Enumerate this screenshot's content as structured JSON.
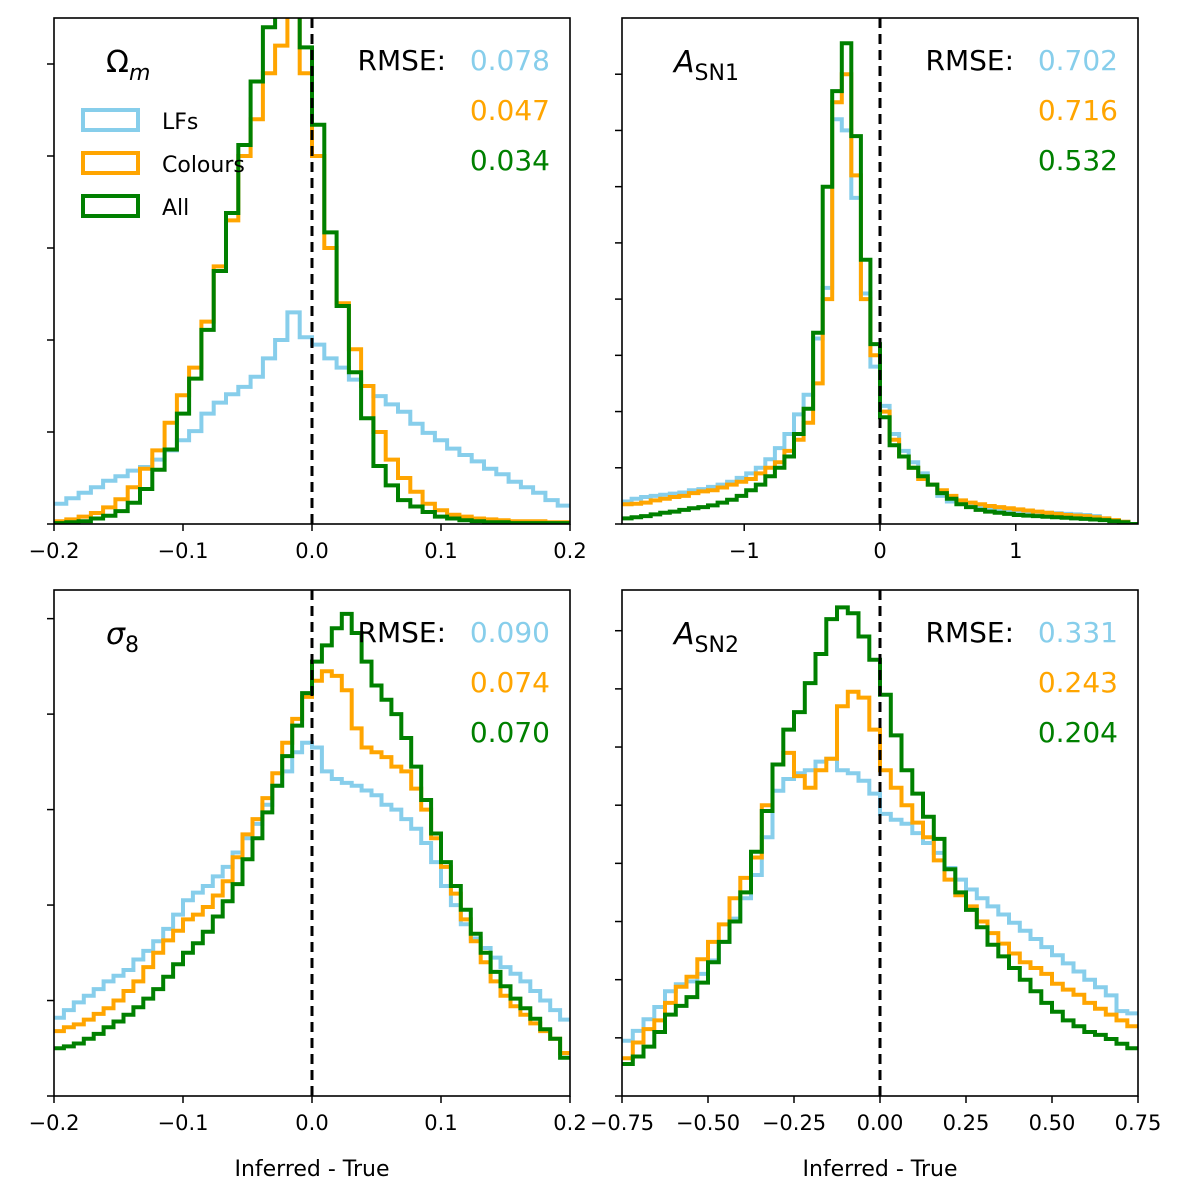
{
  "colors": {
    "LFs": "#87CEEB",
    "Colours": "#FFA500",
    "All": "#008000"
  },
  "legend": {
    "items": [
      {
        "key": "LFs",
        "label": "LFs"
      },
      {
        "key": "Colours",
        "label": "Colours"
      },
      {
        "key": "All",
        "label": "All"
      }
    ]
  },
  "rmse_prefix": "RMSE:",
  "chart_data": [
    {
      "type": "step-histogram",
      "title_main": "Ω",
      "title_sub": "m",
      "title_style": "greek",
      "xlim": [
        -0.2,
        0.2
      ],
      "xticks": [
        -0.2,
        -0.1,
        0.0,
        0.1,
        0.2
      ],
      "xtick_labels": [
        "−0.2",
        "−0.1",
        "0.0",
        "0.1",
        "0.2"
      ],
      "xlabel": "",
      "ylim": [
        0,
        5.5
      ],
      "yticks": [
        0,
        1,
        2,
        3,
        4,
        5
      ],
      "rmse": [
        {
          "key": "LFs",
          "text": "0.078"
        },
        {
          "key": "Colours",
          "text": "0.047"
        },
        {
          "key": "All",
          "text": "0.034"
        }
      ],
      "show_legend": true,
      "series": [
        {
          "key": "LFs",
          "values": [
            0.22,
            0.28,
            0.34,
            0.4,
            0.47,
            0.52,
            0.58,
            0.62,
            0.7,
            0.8,
            0.91,
            1.01,
            1.2,
            1.32,
            1.41,
            1.49,
            1.6,
            1.8,
            2.0,
            2.3,
            2.03,
            1.95,
            1.8,
            1.7,
            1.57,
            1.5,
            1.39,
            1.3,
            1.22,
            1.09,
            0.99,
            0.91,
            0.82,
            0.75,
            0.68,
            0.6,
            0.54,
            0.46,
            0.4,
            0.34,
            0.26,
            0.2
          ]
        },
        {
          "key": "Colours",
          "values": [
            0.03,
            0.05,
            0.08,
            0.12,
            0.18,
            0.27,
            0.4,
            0.6,
            0.8,
            1.1,
            1.4,
            1.7,
            2.2,
            2.8,
            3.3,
            4.0,
            4.4,
            4.9,
            5.2,
            5.8,
            4.9,
            4.0,
            3.0,
            2.4,
            1.9,
            1.5,
            1.0,
            0.7,
            0.5,
            0.35,
            0.22,
            0.15,
            0.1,
            0.08,
            0.06,
            0.05,
            0.04,
            0.03,
            0.03,
            0.03,
            0.02,
            0.02
          ]
        },
        {
          "key": "All",
          "values": [
            0.01,
            0.02,
            0.03,
            0.06,
            0.09,
            0.14,
            0.23,
            0.38,
            0.59,
            0.81,
            1.2,
            1.58,
            2.11,
            2.75,
            3.38,
            4.12,
            4.81,
            5.4,
            5.93,
            6.0,
            5.18,
            4.34,
            3.17,
            2.37,
            1.65,
            1.15,
            0.63,
            0.42,
            0.26,
            0.19,
            0.13,
            0.08,
            0.06,
            0.04,
            0.03,
            0.02,
            0.02,
            0.01,
            0.01,
            0.01,
            0.01,
            0.01
          ]
        }
      ]
    },
    {
      "type": "step-histogram",
      "title_main": "A",
      "title_sub": "SN1",
      "title_style": "italic",
      "xlim": [
        -1.9,
        1.9
      ],
      "xticks": [
        -1,
        0,
        1
      ],
      "xtick_labels": [
        "−1",
        "0",
        "1"
      ],
      "xlabel": "",
      "ylim": [
        0,
        9
      ],
      "yticks": [
        0,
        1,
        2,
        3,
        4,
        5,
        6,
        7,
        8
      ],
      "rmse": [
        {
          "key": "LFs",
          "text": "0.702"
        },
        {
          "key": "Colours",
          "text": "0.716"
        },
        {
          "key": "All",
          "text": "0.532"
        }
      ],
      "show_legend": false,
      "series": [
        {
          "key": "LFs",
          "values": [
            0.4,
            0.45,
            0.48,
            0.5,
            0.52,
            0.54,
            0.56,
            0.6,
            0.62,
            0.66,
            0.7,
            0.75,
            0.82,
            0.9,
            1.0,
            1.15,
            1.35,
            1.6,
            1.95,
            2.3,
            3.3,
            4.2,
            7.2,
            7.0,
            5.8,
            4.1,
            2.8,
            2.1,
            1.6,
            1.3,
            1.1,
            0.9,
            0.7,
            0.5,
            0.4,
            0.36,
            0.32,
            0.29,
            0.27,
            0.25,
            0.24,
            0.23,
            0.22,
            0.21,
            0.2,
            0.19,
            0.18,
            0.17,
            0.16,
            0.14,
            0.1,
            0.07,
            0.04,
            0.0
          ]
        },
        {
          "key": "Colours",
          "values": [
            0.35,
            0.36,
            0.38,
            0.42,
            0.45,
            0.48,
            0.5,
            0.55,
            0.58,
            0.6,
            0.65,
            0.7,
            0.75,
            0.8,
            0.9,
            1.0,
            1.1,
            1.3,
            1.5,
            1.8,
            2.5,
            4.0,
            7.5,
            8.0,
            6.2,
            4.0,
            3.0,
            2.0,
            1.5,
            1.2,
            1.0,
            0.8,
            0.7,
            0.6,
            0.5,
            0.42,
            0.38,
            0.35,
            0.32,
            0.3,
            0.28,
            0.26,
            0.24,
            0.22,
            0.2,
            0.18,
            0.16,
            0.15,
            0.14,
            0.12,
            0.1,
            0.07,
            0.04,
            0.0
          ]
        },
        {
          "key": "All",
          "values": [
            0.1,
            0.12,
            0.14,
            0.17,
            0.2,
            0.22,
            0.25,
            0.28,
            0.3,
            0.33,
            0.38,
            0.43,
            0.5,
            0.6,
            0.7,
            0.85,
            1.0,
            1.2,
            1.6,
            2.05,
            3.4,
            6.0,
            7.7,
            8.55,
            6.9,
            4.7,
            3.2,
            1.9,
            1.4,
            1.2,
            1.0,
            0.85,
            0.7,
            0.55,
            0.45,
            0.35,
            0.3,
            0.25,
            0.22,
            0.2,
            0.18,
            0.16,
            0.15,
            0.14,
            0.13,
            0.12,
            0.11,
            0.1,
            0.09,
            0.08,
            0.07,
            0.05,
            0.03,
            0.0
          ]
        }
      ]
    },
    {
      "type": "step-histogram",
      "title_main": "σ",
      "title_sub": "8",
      "title_style": "italic",
      "xlim": [
        -0.2,
        0.2
      ],
      "xticks": [
        -0.2,
        -0.1,
        0.0,
        0.1,
        0.2
      ],
      "xtick_labels": [
        "−0.2",
        "−0.1",
        "0.0",
        "0.1",
        "0.2"
      ],
      "xlabel": "Inferred - True",
      "ylim": [
        0,
        5.3
      ],
      "yticks": [
        0,
        1,
        2,
        3,
        4,
        5
      ],
      "rmse": [
        {
          "key": "LFs",
          "text": "0.090"
        },
        {
          "key": "Colours",
          "text": "0.074"
        },
        {
          "key": "All",
          "text": "0.070"
        }
      ],
      "show_legend": false,
      "series": [
        {
          "key": "LFs",
          "values": [
            0.82,
            0.9,
            0.98,
            1.05,
            1.12,
            1.2,
            1.26,
            1.32,
            1.43,
            1.52,
            1.62,
            1.75,
            1.9,
            2.05,
            2.13,
            2.2,
            2.3,
            2.4,
            2.55,
            2.7,
            2.85,
            3.05,
            3.25,
            3.4,
            3.6,
            3.7,
            3.65,
            3.4,
            3.32,
            3.28,
            3.25,
            3.2,
            3.15,
            3.05,
            3.0,
            2.9,
            2.8,
            2.65,
            2.45,
            2.2,
            2.0,
            1.8,
            1.65,
            1.55,
            1.45,
            1.35,
            1.28,
            1.2,
            1.1,
            1.0,
            0.9,
            0.8
          ]
        },
        {
          "key": "Colours",
          "values": [
            0.68,
            0.72,
            0.75,
            0.8,
            0.86,
            0.92,
            1.0,
            1.1,
            1.2,
            1.35,
            1.5,
            1.63,
            1.73,
            1.85,
            1.9,
            1.98,
            2.1,
            2.25,
            2.5,
            2.74,
            2.9,
            3.12,
            3.38,
            3.7,
            3.95,
            4.18,
            4.35,
            4.45,
            4.4,
            4.25,
            3.85,
            3.65,
            3.6,
            3.55,
            3.45,
            3.4,
            3.22,
            3.0,
            2.7,
            2.4,
            2.12,
            1.85,
            1.62,
            1.4,
            1.2,
            1.05,
            0.94,
            0.85,
            0.76,
            0.68,
            0.6,
            0.45
          ]
        },
        {
          "key": "All",
          "values": [
            0.5,
            0.52,
            0.55,
            0.6,
            0.65,
            0.72,
            0.78,
            0.85,
            0.93,
            1.02,
            1.12,
            1.25,
            1.38,
            1.5,
            1.6,
            1.72,
            1.88,
            2.04,
            2.22,
            2.48,
            2.7,
            2.97,
            3.25,
            3.56,
            3.88,
            4.22,
            4.55,
            4.72,
            4.9,
            5.05,
            4.85,
            4.55,
            4.3,
            4.15,
            4.0,
            3.75,
            3.45,
            3.1,
            2.75,
            2.45,
            2.2,
            1.95,
            1.7,
            1.5,
            1.3,
            1.15,
            1.02,
            0.92,
            0.81,
            0.7,
            0.6,
            0.4
          ]
        }
      ]
    },
    {
      "type": "step-histogram",
      "title_main": "A",
      "title_sub": "SN2",
      "title_style": "italic",
      "xlim": [
        -0.75,
        0.75
      ],
      "xticks": [
        -0.75,
        -0.5,
        -0.25,
        0.0,
        0.25,
        0.5,
        0.75
      ],
      "xtick_labels": [
        "−0.75",
        "−0.50",
        "−0.25",
        "0.00",
        "0.25",
        "0.50",
        "0.75"
      ],
      "xlabel": "Inferred - True",
      "ylim": [
        0,
        8.7
      ],
      "yticks": [
        0,
        1,
        2,
        3,
        4,
        5,
        6,
        7,
        8
      ],
      "rmse": [
        {
          "key": "LFs",
          "text": "0.331"
        },
        {
          "key": "Colours",
          "text": "0.243"
        },
        {
          "key": "All",
          "text": "0.204"
        }
      ],
      "show_legend": false,
      "series": [
        {
          "key": "LFs",
          "values": [
            0.95,
            1.12,
            1.32,
            1.53,
            1.8,
            1.92,
            1.97,
            2.1,
            2.33,
            2.65,
            3.05,
            3.4,
            3.8,
            4.45,
            5.25,
            5.45,
            5.55,
            5.6,
            5.75,
            5.8,
            5.6,
            5.55,
            5.42,
            5.2,
            4.85,
            4.75,
            4.68,
            4.52,
            4.35,
            4.18,
            3.92,
            3.72,
            3.55,
            3.4,
            3.26,
            3.12,
            2.98,
            2.84,
            2.7,
            2.56,
            2.42,
            2.28,
            2.14,
            2.0,
            1.87,
            1.73,
            1.46,
            1.42
          ]
        },
        {
          "key": "Colours",
          "values": [
            0.65,
            0.92,
            1.15,
            1.3,
            1.6,
            1.88,
            2.05,
            2.35,
            2.65,
            2.95,
            3.4,
            3.75,
            4.1,
            5.0,
            5.7,
            5.9,
            5.5,
            5.3,
            5.6,
            5.8,
            6.7,
            6.95,
            6.85,
            6.3,
            5.6,
            5.3,
            5.0,
            4.7,
            4.45,
            4.05,
            3.72,
            3.45,
            3.26,
            3.0,
            2.8,
            2.62,
            2.45,
            2.3,
            2.2,
            2.1,
            1.93,
            1.83,
            1.74,
            1.6,
            1.5,
            1.4,
            1.3,
            1.2
          ]
        },
        {
          "key": "All",
          "values": [
            0.55,
            0.68,
            0.85,
            1.1,
            1.4,
            1.55,
            1.7,
            1.95,
            2.3,
            2.65,
            3.0,
            3.5,
            4.2,
            4.9,
            5.7,
            6.3,
            6.6,
            7.1,
            7.6,
            8.2,
            8.4,
            8.3,
            7.9,
            7.5,
            6.9,
            6.2,
            5.6,
            5.2,
            4.8,
            4.42,
            3.9,
            3.5,
            3.2,
            2.9,
            2.6,
            2.4,
            2.2,
            2.0,
            1.8,
            1.6,
            1.45,
            1.3,
            1.2,
            1.1,
            1.05,
            0.98,
            0.9,
            0.82
          ]
        }
      ]
    }
  ]
}
